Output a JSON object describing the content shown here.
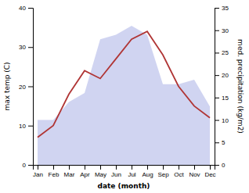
{
  "chart_data": {
    "type": "line",
    "categories": [
      "Jan",
      "Feb",
      "Mar",
      "Apr",
      "May",
      "Jun",
      "Jul",
      "Aug",
      "Sep",
      "Oct",
      "Nov",
      "Dec"
    ],
    "xlabel": "date (month)",
    "ylabel": "max temp (C)",
    "y2label": "med. precipitation (kg/m2)",
    "ylim": [
      0,
      40
    ],
    "yticks": [
      0,
      10,
      20,
      30,
      40
    ],
    "y2lim": [
      0,
      35
    ],
    "y2ticks": [
      0,
      5,
      10,
      15,
      20,
      25,
      30,
      35
    ],
    "grid": false,
    "series": [
      {
        "type": "area",
        "axis": "y2",
        "color": "#c8ccee",
        "values": [
          10,
          10,
          14,
          16,
          28,
          29,
          31,
          29,
          18,
          18,
          19,
          13
        ]
      },
      {
        "type": "line",
        "color": "#b03535",
        "values": [
          7,
          10,
          18,
          24,
          22,
          27,
          32,
          34,
          28,
          20,
          15,
          12
        ]
      }
    ]
  }
}
